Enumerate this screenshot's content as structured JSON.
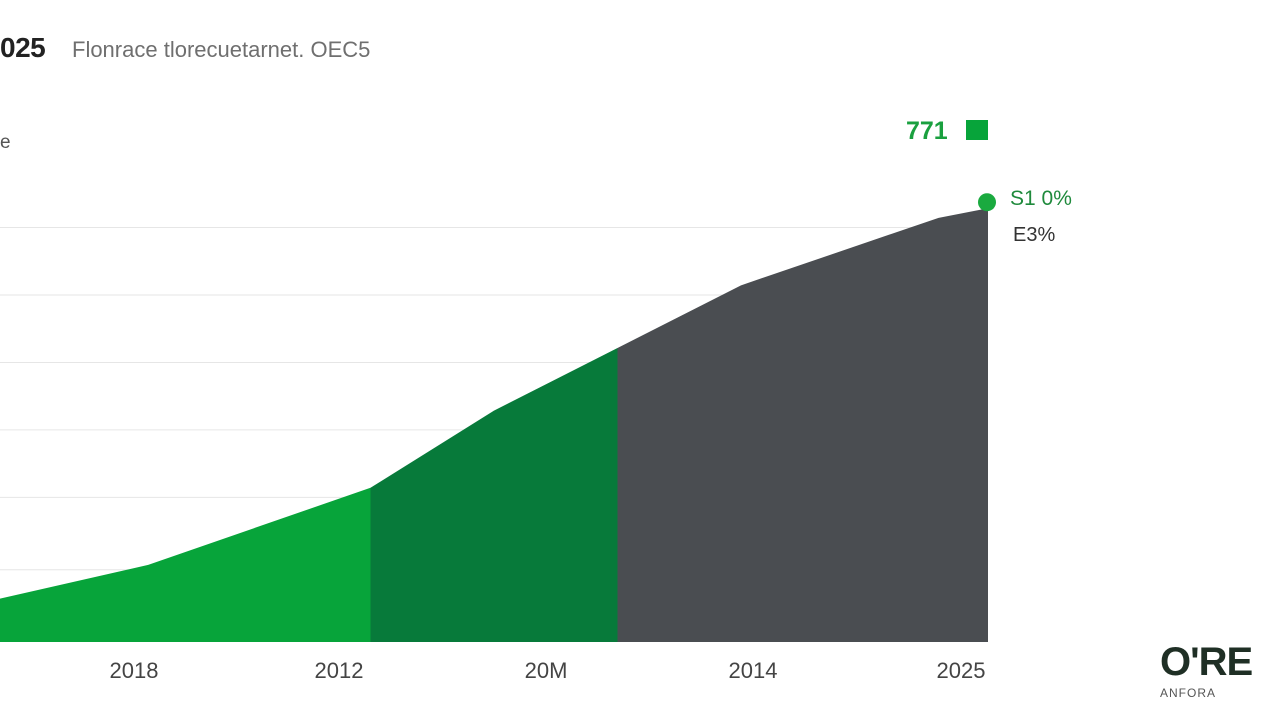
{
  "header": {
    "year": "025",
    "subtitle": "Flonrace tlorecuetarnet. OEC5",
    "ylabel_fragment": "e"
  },
  "annotations": {
    "peak_label": "771",
    "endpoint_value": "S1 0%",
    "endpoint_sub": "E3%"
  },
  "logo": {
    "mark": "O'RE",
    "sub": "ANFORA"
  },
  "colors": {
    "segment_1": "#07a43a",
    "segment_2": "#077a3a",
    "segment_3": "#4a4d51",
    "endpoint_dot": "#1aaa3f",
    "gridline": "#e6e6e6"
  },
  "chart_data": {
    "type": "area",
    "title": "",
    "xlabel": "",
    "ylabel": "",
    "grid": true,
    "legend": "none",
    "x_tick_labels": [
      "2018",
      "2012",
      "20M",
      "2014",
      "2025"
    ],
    "x": [
      0,
      0.6,
      1.5,
      2.0,
      3.0,
      3.8,
      4.0
    ],
    "values": [
      9,
      16,
      32,
      48,
      74,
      88,
      90
    ],
    "ylim": [
      0,
      100
    ],
    "grid_values": [
      15,
      30,
      44,
      58,
      72,
      86
    ],
    "segments": [
      {
        "from": 0,
        "to": 1.5,
        "color_key": "segment_1"
      },
      {
        "from": 1.5,
        "to": 2.5,
        "color_key": "segment_2"
      },
      {
        "from": 2.5,
        "to": 4.0,
        "color_key": "segment_3"
      }
    ]
  }
}
